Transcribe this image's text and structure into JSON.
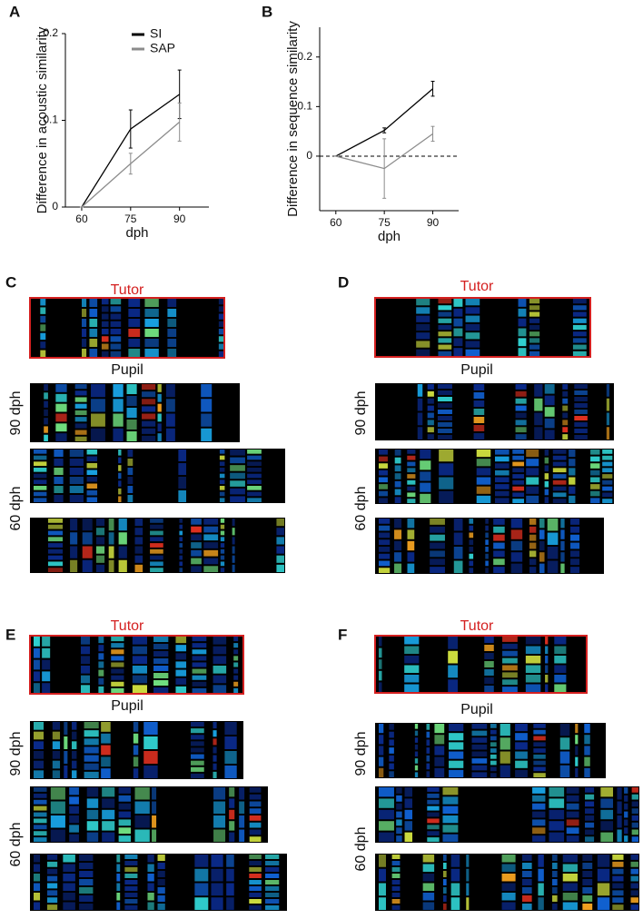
{
  "chart_data": [
    {
      "type": "line",
      "panel_label": "A",
      "x": [
        60,
        75,
        90
      ],
      "xlim": [
        55,
        99
      ],
      "xticks": [
        60,
        75,
        90
      ],
      "ylim": [
        0,
        0.2
      ],
      "yticks": [
        0,
        0.1,
        0.2
      ],
      "xlabel": "dph",
      "ylabel": "Difference  in acoustic similarity",
      "legend": "upper right",
      "series": [
        {
          "name": "SI",
          "color": "#000000",
          "values": [
            0,
            0.09,
            0.13
          ],
          "errors": [
            0,
            0.022,
            0.028
          ]
        },
        {
          "name": "SAP",
          "color": "#8c8c8c",
          "values": [
            0,
            0.05,
            0.098
          ],
          "errors": [
            0,
            0.012,
            0.022
          ]
        }
      ]
    },
    {
      "type": "line",
      "panel_label": "B",
      "x": [
        60,
        75,
        90
      ],
      "xlim": [
        55,
        98
      ],
      "xticks": [
        60,
        75,
        90
      ],
      "ylim": [
        -0.11,
        0.26
      ],
      "yticks": [
        0,
        0.1,
        0.2
      ],
      "xlabel": "dph",
      "ylabel": "Difference  in sequence  similarity",
      "reference_line": 0,
      "series": [
        {
          "color": "#000000",
          "values": [
            0,
            0.052,
            0.136
          ],
          "errors": [
            0,
            0.005,
            0.015
          ]
        },
        {
          "color": "#8c8c8c",
          "values": [
            0,
            -0.025,
            0.045
          ],
          "errors": [
            0,
            0.06,
            0.015
          ]
        }
      ]
    }
  ],
  "panels": [
    {
      "label": "C",
      "tutor": "Tutor",
      "pupil": "Pupil",
      "ages": [
        "90 dph",
        "60 dph"
      ]
    },
    {
      "label": "D",
      "tutor": "Tutor",
      "pupil": "Pupil",
      "ages": [
        "90 dph",
        "60 dph"
      ]
    },
    {
      "label": "E",
      "tutor": "Tutor",
      "pupil": "Pupil",
      "ages": [
        "90 dph",
        "60 dph"
      ]
    },
    {
      "label": "F",
      "tutor": "Tutor",
      "pupil": "Pupil",
      "ages": [
        "90 dph",
        "60 dph"
      ]
    }
  ]
}
